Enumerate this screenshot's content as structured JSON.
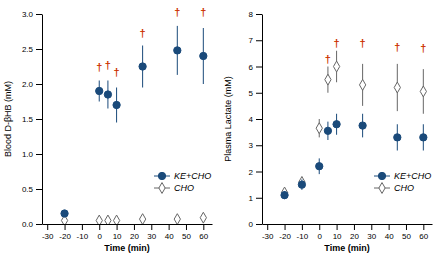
{
  "chart_data": [
    {
      "type": "scatter",
      "xlabel": "Time (min)",
      "ylabel": "Blood D-βHB (mM)",
      "x": [
        -20,
        0,
        5,
        10,
        25,
        45,
        60
      ],
      "xlim": [
        -33,
        65
      ],
      "xticks": [
        -30,
        -20,
        -10,
        0,
        10,
        20,
        30,
        40,
        50,
        60
      ],
      "ylim": [
        0,
        3
      ],
      "yticks": [
        {
          "value": 0,
          "label": "0.0"
        },
        0.5,
        {
          "value": 1.0,
          "label": "1.0"
        },
        1.5,
        {
          "value": 2.0,
          "label": "2.0"
        },
        2.5,
        {
          "value": 3.0,
          "label": "3.0"
        }
      ],
      "grid": false,
      "legend": "lower right",
      "series": [
        {
          "name": "KE+CHO",
          "color": "#1a4a7a",
          "marker": "circle",
          "values": [
            0.15,
            1.9,
            1.85,
            1.7,
            2.25,
            2.48,
            2.4
          ],
          "errors": [
            0.05,
            0.15,
            0.2,
            0.25,
            0.3,
            0.35,
            0.4
          ]
        },
        {
          "name": "CHO",
          "color": "#666666",
          "marker": "diamond",
          "values": [
            0.05,
            0.05,
            0.05,
            0.05,
            0.07,
            0.07,
            0.09
          ],
          "errors": [
            0.02,
            0.02,
            0.02,
            0.02,
            0.02,
            0.02,
            0.03
          ]
        }
      ],
      "annotations": [
        {
          "text": "†",
          "x": 0,
          "y": 2.18,
          "color": "#cc3300"
        },
        {
          "text": "†",
          "x": 5,
          "y": 2.22,
          "color": "#cc3300"
        },
        {
          "text": "†",
          "x": 10,
          "y": 2.12,
          "color": "#cc3300"
        },
        {
          "text": "†",
          "x": 25,
          "y": 2.67,
          "color": "#cc3300"
        },
        {
          "text": "†",
          "x": 45,
          "y": 2.97,
          "color": "#cc3300"
        },
        {
          "text": "†",
          "x": 60,
          "y": 2.97,
          "color": "#cc3300"
        }
      ]
    },
    {
      "type": "scatter",
      "xlabel": "Time (min)",
      "ylabel": "Plasma Lactate (mM)",
      "x": [
        -20,
        -10,
        0,
        5,
        10,
        25,
        45,
        60
      ],
      "xlim": [
        -33,
        65
      ],
      "xticks": [
        -30,
        -20,
        -10,
        0,
        10,
        20,
        30,
        40,
        50,
        60
      ],
      "ylim": [
        0,
        8
      ],
      "yticks": [
        0,
        1,
        2,
        3,
        4,
        5,
        6,
        7,
        8
      ],
      "grid": false,
      "legend": "lower right",
      "series": [
        {
          "name": "KE+CHO",
          "color": "#1a4a7a",
          "marker": "circle",
          "values": [
            1.1,
            1.5,
            2.2,
            3.55,
            3.8,
            3.75,
            3.3,
            3.3
          ],
          "errors": [
            0.15,
            0.2,
            0.3,
            0.35,
            0.4,
            0.45,
            0.5,
            0.5
          ]
        },
        {
          "name": "CHO",
          "color": "#666666",
          "marker": "diamond",
          "values": [
            1.2,
            1.6,
            3.65,
            5.5,
            6.0,
            5.3,
            5.2,
            5.05
          ],
          "errors": [
            0.15,
            0.2,
            0.35,
            0.5,
            0.6,
            0.8,
            0.9,
            0.85
          ]
        }
      ],
      "annotations": [
        {
          "text": "†",
          "x": 5,
          "y": 6.15,
          "color": "#cc3300"
        },
        {
          "text": "†",
          "x": 10,
          "y": 6.75,
          "color": "#cc3300"
        },
        {
          "text": "†",
          "x": 25,
          "y": 6.75,
          "color": "#cc3300"
        },
        {
          "text": "†",
          "x": 45,
          "y": 6.6,
          "color": "#cc3300"
        },
        {
          "text": "†",
          "x": 60,
          "y": 6.55,
          "color": "#cc3300"
        }
      ]
    }
  ]
}
